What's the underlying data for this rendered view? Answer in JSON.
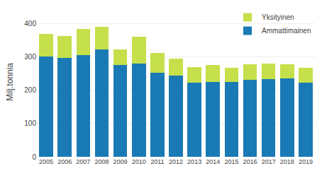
{
  "chart_data": {
    "type": "bar",
    "stacked": true,
    "ylabel": "Milj.tonnia",
    "categories": [
      "2005",
      "2006",
      "2007",
      "2008",
      "2009",
      "2010",
      "2011",
      "2012",
      "2013",
      "2014",
      "2015",
      "2016",
      "2017",
      "2018",
      "2019"
    ],
    "series": [
      {
        "name": "Ammattimainen",
        "color": "#1a7ab5",
        "values": [
          302,
          298,
          305,
          323,
          276,
          280,
          252,
          245,
          223,
          226,
          226,
          231,
          233,
          236,
          223
        ]
      },
      {
        "name": "Yksityinen",
        "color": "#c5e04a",
        "values": [
          68,
          66,
          80,
          67,
          46,
          80,
          60,
          49,
          46,
          50,
          42,
          47,
          48,
          42,
          44
        ]
      }
    ],
    "ylim": [
      0,
      450
    ],
    "yticks": [
      0,
      100,
      200,
      300,
      400
    ],
    "grid": true,
    "legend": "upper right"
  }
}
